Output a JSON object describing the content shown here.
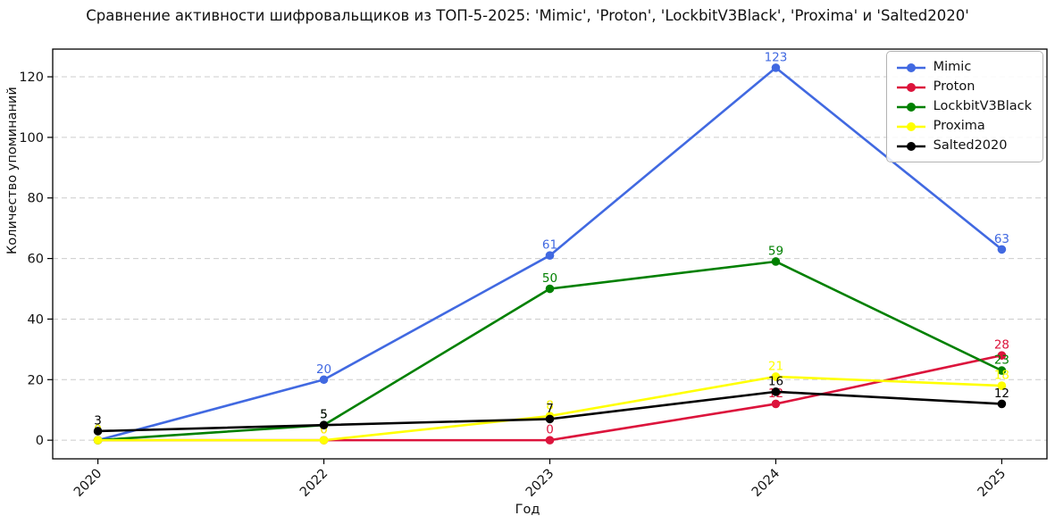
{
  "title": "Сравнение активности шифровальщиков из ТОП-5-2025: 'Mimic', 'Proton', 'LockbitV3Black', 'Proxima' и 'Salted2020'",
  "chart_data": {
    "type": "line",
    "x": [
      "2020",
      "2022",
      "2023",
      "2024",
      "2025"
    ],
    "series": [
      {
        "name": "Mimic",
        "color": "#4169e1",
        "values": [
          0,
          20,
          61,
          123,
          63
        ]
      },
      {
        "name": "Proton",
        "color": "#dc143c",
        "values": [
          0,
          0,
          0,
          12,
          28
        ]
      },
      {
        "name": "LockbitV3Black",
        "color": "#008000",
        "values": [
          0,
          5,
          50,
          59,
          23
        ]
      },
      {
        "name": "Proxima",
        "color": "#ffff00",
        "values": [
          0,
          0,
          8,
          21,
          18
        ]
      },
      {
        "name": "Salted2020",
        "color": "#000000",
        "values": [
          3,
          5,
          7,
          16,
          12
        ]
      }
    ],
    "xlabel": "Год",
    "ylabel": "Количество упоминаний",
    "yticks": [
      0,
      20,
      40,
      60,
      80,
      100,
      120
    ],
    "ylim": [
      -6.15,
      129.15
    ],
    "grid": "horizontal-dashed",
    "point_labels": true,
    "legend_position": "upper right",
    "x_tick_rotation": 45
  },
  "colors": {
    "background": "#ffffff",
    "grid": "#cccccc",
    "spine": "#000000",
    "tick_text": "#111111",
    "legend_border": "#b3b3b3"
  }
}
